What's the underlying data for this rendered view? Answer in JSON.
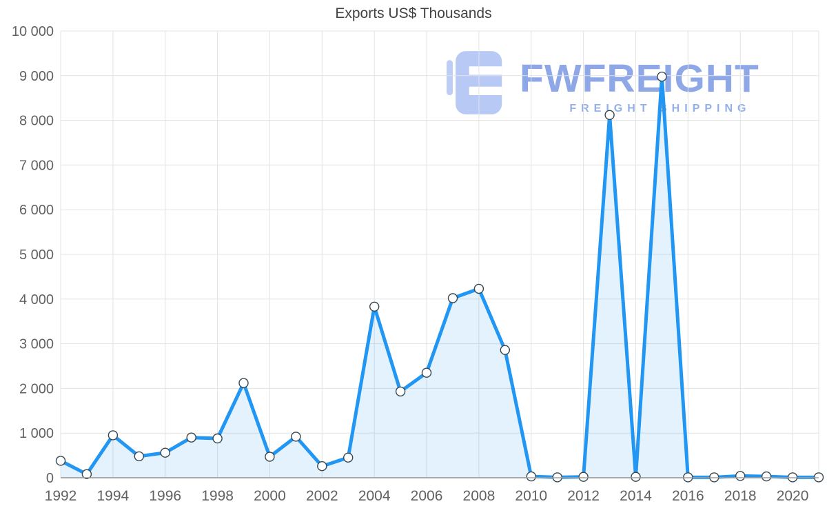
{
  "watermark": {
    "brand": "FWFREIGHT",
    "subtitle": "FREIGHT SHIPPING"
  },
  "chart_data": {
    "type": "area",
    "title": "Exports US$ Thousands",
    "xlabel": "",
    "ylabel": "",
    "x": [
      1992,
      1993,
      1994,
      1995,
      1996,
      1997,
      1998,
      1999,
      2000,
      2001,
      2002,
      2003,
      2004,
      2005,
      2006,
      2007,
      2008,
      2009,
      2010,
      2011,
      2012,
      2013,
      2014,
      2015,
      2016,
      2017,
      2018,
      2019,
      2020,
      2021
    ],
    "values": [
      380,
      80,
      950,
      480,
      560,
      900,
      880,
      2120,
      470,
      920,
      260,
      450,
      3830,
      1930,
      2350,
      4020,
      4230,
      2860,
      30,
      10,
      20,
      8120,
      20,
      8980,
      10,
      10,
      40,
      30,
      10,
      10
    ],
    "ylim": [
      0,
      10000
    ],
    "y_tick_step": 1000,
    "x_tick_step": 2,
    "grid": true,
    "legend": "none",
    "line_color": "#2196f3",
    "fill_color": "rgba(33,150,243,0.12)",
    "marker": "white-circle-dark-outline",
    "axis_color": "#9e9e9e",
    "grid_color": "#e3e3e3",
    "tick_color": "#616161"
  }
}
